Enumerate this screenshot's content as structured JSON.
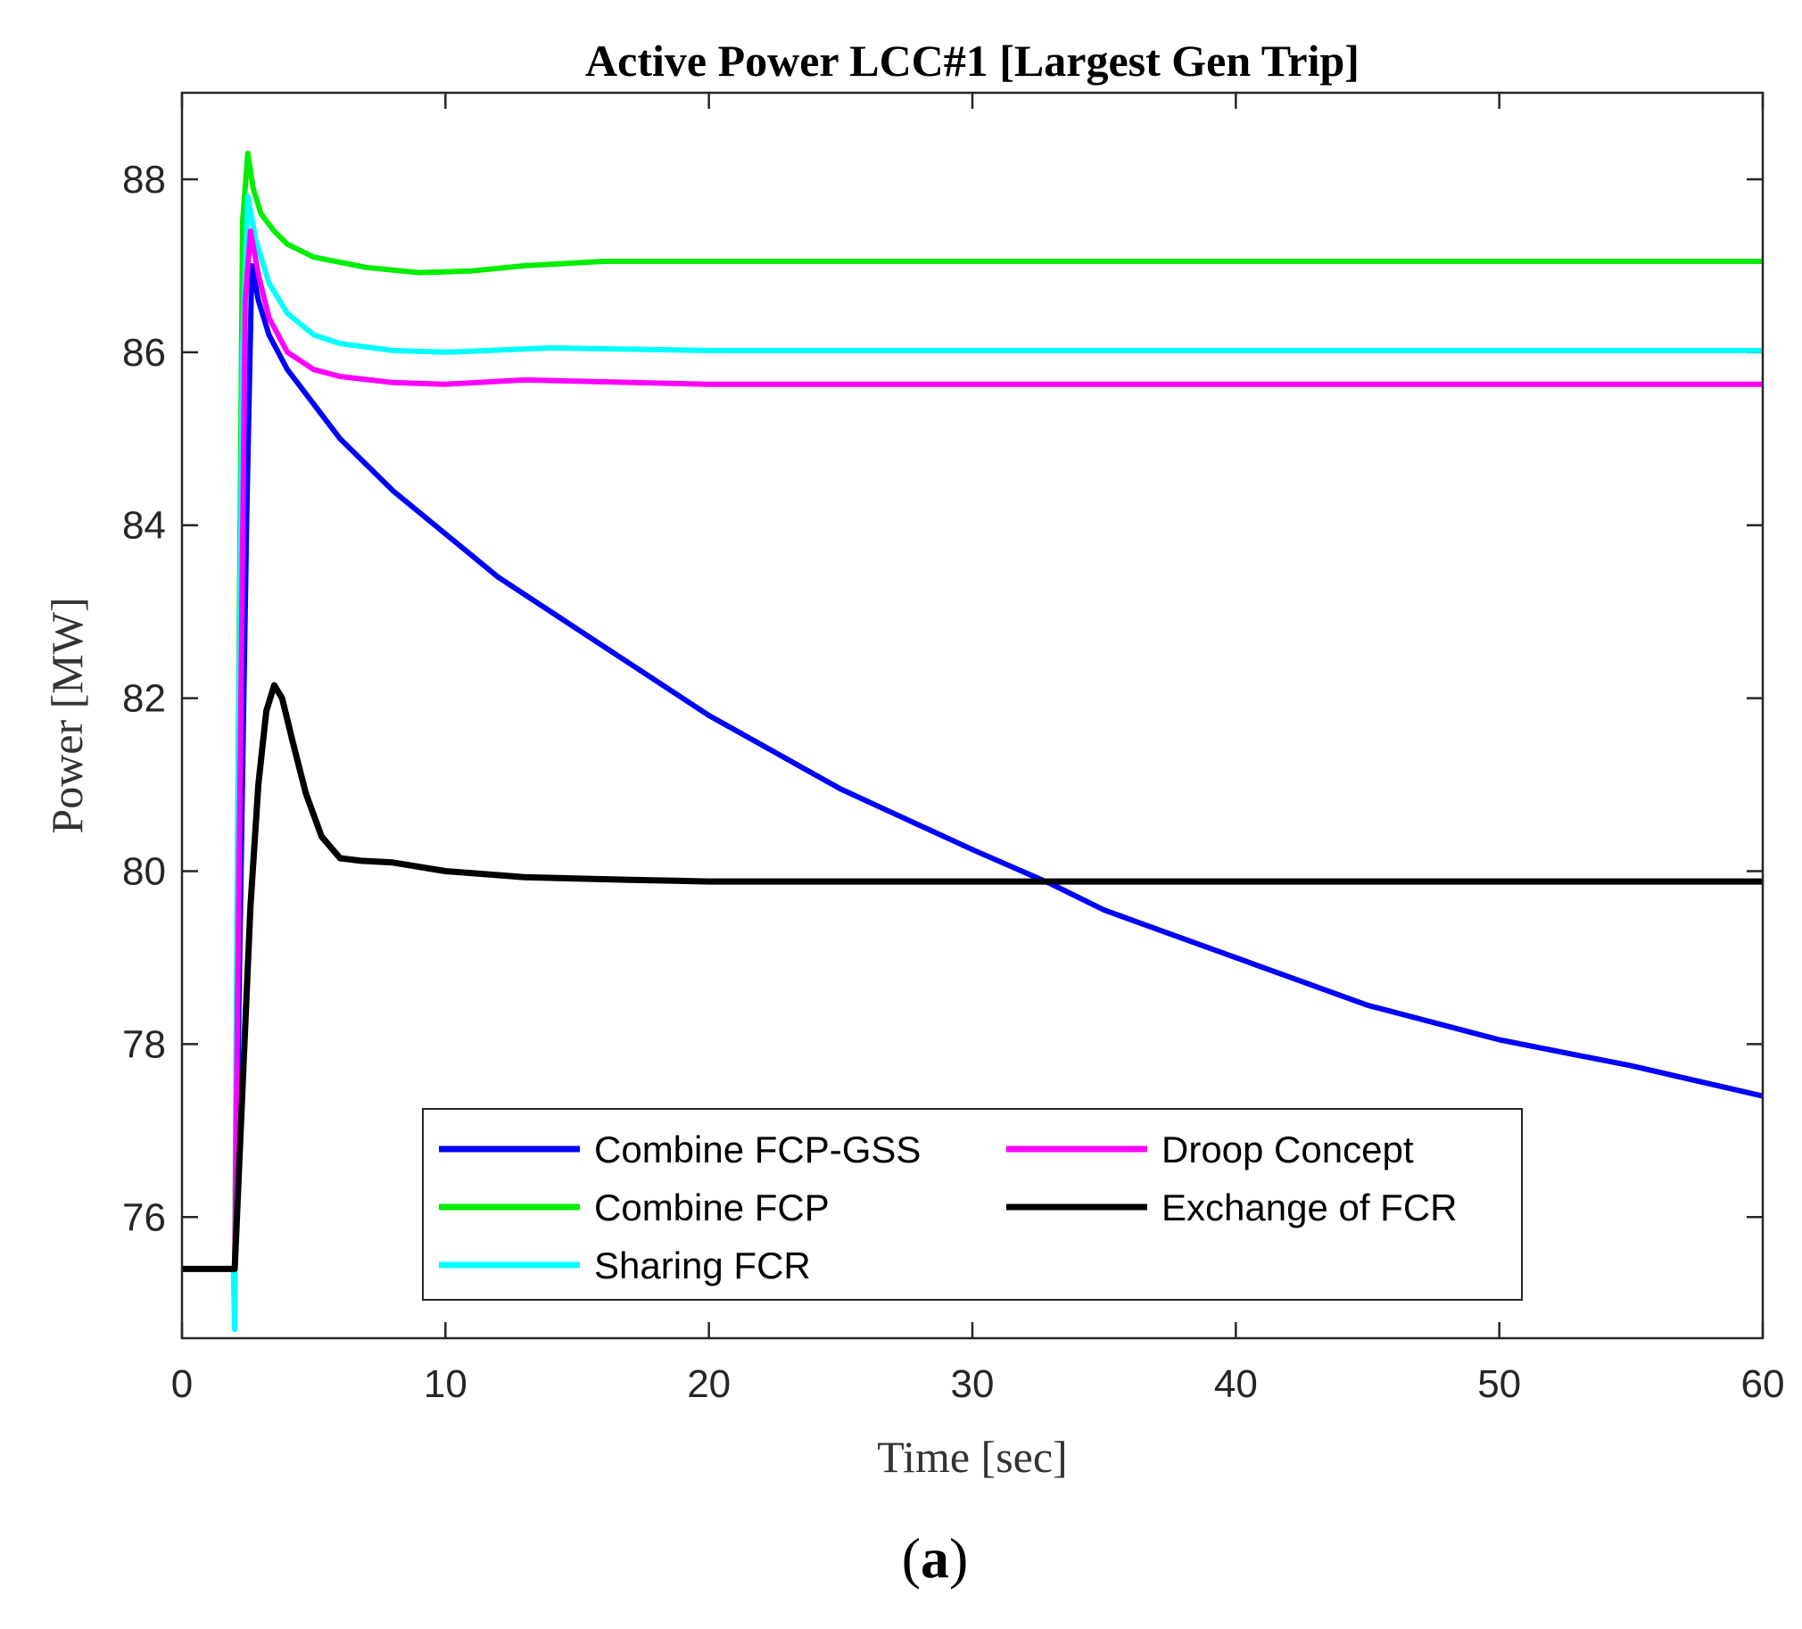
{
  "chart_data": {
    "type": "line",
    "title": "Active Power LCC#1 [Largest Gen Trip]",
    "xlabel": "Time [sec]",
    "ylabel": "Power [MW]",
    "xlim": [
      0,
      60
    ],
    "ylim": [
      74.6,
      89
    ],
    "xticks": [
      0,
      10,
      20,
      30,
      40,
      50,
      60
    ],
    "yticks": [
      76,
      78,
      80,
      82,
      84,
      86,
      88
    ],
    "panel_label_open": "(",
    "panel_label_letter": "a",
    "panel_label_close": ")",
    "legend_position": "bottom-center",
    "series": [
      {
        "name": "Combine FCP-GSS",
        "color": "#0000ff",
        "x": [
          0,
          2,
          2.45,
          2.65,
          2.9,
          3.3,
          4,
          5,
          6,
          8,
          10,
          12,
          15,
          18,
          20,
          25,
          30,
          33,
          35,
          40,
          45,
          50,
          55,
          60
        ],
        "y": [
          75.4,
          75.4,
          84,
          87.0,
          86.6,
          86.2,
          85.8,
          85.4,
          85.0,
          84.4,
          83.9,
          83.4,
          82.8,
          82.2,
          81.8,
          80.95,
          80.25,
          79.85,
          79.55,
          79.0,
          78.45,
          78.05,
          77.75,
          77.4
        ]
      },
      {
        "name": "Combine FCP",
        "color": "#00ee00",
        "x": [
          0,
          2,
          2.1,
          2.3,
          2.5,
          2.7,
          3.0,
          3.5,
          4,
          5,
          7,
          9,
          11,
          13,
          16,
          20,
          30,
          40,
          50,
          60
        ],
        "y": [
          75.4,
          75.4,
          80,
          87.5,
          88.3,
          87.9,
          87.6,
          87.4,
          87.25,
          87.1,
          86.98,
          86.92,
          86.94,
          87.0,
          87.05,
          87.05,
          87.05,
          87.05,
          87.05,
          87.05
        ]
      },
      {
        "name": "Sharing FCR",
        "color": "#00ffff",
        "x": [
          0,
          1.95,
          2.0,
          2.1,
          2.3,
          2.5,
          2.8,
          3.3,
          4,
          5,
          6,
          8,
          10,
          14,
          20,
          30,
          40,
          50,
          60
        ],
        "y": [
          75.4,
          75.4,
          74.7,
          80,
          86.0,
          87.8,
          87.3,
          86.8,
          86.45,
          86.2,
          86.1,
          86.02,
          86.0,
          86.05,
          86.02,
          86.02,
          86.02,
          86.02,
          86.02
        ]
      },
      {
        "name": "Droop Concept",
        "color": "#ff00ff",
        "x": [
          0,
          2,
          2.2,
          2.4,
          2.6,
          2.9,
          3.3,
          4,
          5,
          6,
          8,
          10,
          13,
          20,
          30,
          40,
          50,
          60
        ],
        "y": [
          75.4,
          75.4,
          81,
          86.6,
          87.4,
          86.9,
          86.4,
          86.0,
          85.8,
          85.72,
          85.65,
          85.63,
          85.68,
          85.63,
          85.63,
          85.63,
          85.63,
          85.63
        ]
      },
      {
        "name": "Exchange of FCR",
        "color": "#000000",
        "x": [
          0,
          2,
          2.3,
          2.6,
          2.9,
          3.2,
          3.5,
          3.8,
          4.2,
          4.7,
          5.3,
          6.0,
          6.8,
          8,
          10,
          13,
          17,
          20,
          30,
          40,
          50,
          60
        ],
        "y": [
          75.4,
          75.4,
          77.5,
          79.6,
          81.0,
          81.85,
          82.15,
          82.0,
          81.5,
          80.9,
          80.4,
          80.15,
          80.12,
          80.1,
          80.0,
          79.93,
          79.9,
          79.88,
          79.88,
          79.88,
          79.88,
          79.88
        ]
      }
    ]
  }
}
